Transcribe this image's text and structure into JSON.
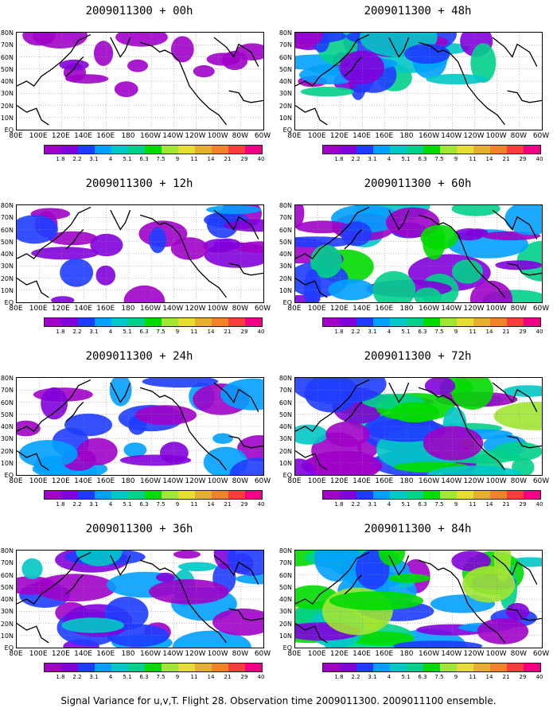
{
  "panels": [
    {
      "title": "2009011300 + 00h",
      "fill": 0.15
    },
    {
      "title": "2009011300 + 12h",
      "fill": 0.35
    },
    {
      "title": "2009011300 + 24h",
      "fill": 0.45
    },
    {
      "title": "2009011300 + 36h",
      "fill": 0.55
    },
    {
      "title": "2009011300 + 48h",
      "fill": 0.65
    },
    {
      "title": "2009011300 + 60h",
      "fill": 0.72
    },
    {
      "title": "2009011300 + 72h",
      "fill": 0.8
    },
    {
      "title": "2009011300 + 84h",
      "fill": 0.88
    }
  ],
  "lat_labels": [
    "80N",
    "70N",
    "60N",
    "50N",
    "40N",
    "30N",
    "20N",
    "10N",
    "EQ"
  ],
  "lon_labels": [
    "80E",
    "100E",
    "120E",
    "140E",
    "160E",
    "180",
    "160W",
    "140W",
    "120W",
    "100W",
    "80W",
    "60W"
  ],
  "colorbar": {
    "labels": [
      "1.8",
      "2.2",
      "3.1",
      "4",
      "5.1",
      "6.3",
      "7.5",
      "9",
      "11",
      "14",
      "21",
      "29",
      "40"
    ],
    "colors": [
      "#a000c8",
      "#8200dc",
      "#1e3cff",
      "#00a0ff",
      "#00c8c8",
      "#00d28c",
      "#00dc00",
      "#a0e632",
      "#e6dc32",
      "#e6af2d",
      "#f08228",
      "#fa3c3c",
      "#f00082"
    ]
  },
  "caption": "Signal Variance for u,v,T. Flight 28. Observation time 2009011300. 2009011100 ensemble."
}
